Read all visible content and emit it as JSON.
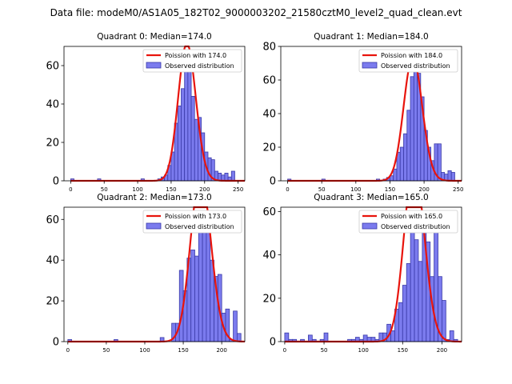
{
  "figure_title": "Data file: modeM0/AS1A05_182T02_9000003202_21580cztM0_level2_quad_clean.evt",
  "colors": {
    "bar_fill": "#7b7bee",
    "bar_edge": "#3a3aa8",
    "curve": "#e8140c",
    "axes": "#000000"
  },
  "chart_data": [
    {
      "type": "bar",
      "title": "Quadrant 0: Median=174.0",
      "median": 174.0,
      "legend_curve": "Poission with 174.0",
      "legend_bars": "Observed distribution",
      "legend_position": "top-right",
      "xlim": [
        -10,
        260
      ],
      "ylim": [
        0,
        70
      ],
      "xticks": [
        0,
        50,
        100,
        150,
        200,
        250
      ],
      "yticks": [
        0,
        20,
        40,
        60
      ],
      "bin_width": 5,
      "bins": [
        [
          0,
          1
        ],
        [
          40,
          1
        ],
        [
          105,
          1
        ],
        [
          130,
          1
        ],
        [
          135,
          2
        ],
        [
          140,
          3
        ],
        [
          145,
          8
        ],
        [
          150,
          15
        ],
        [
          155,
          30
        ],
        [
          160,
          39
        ],
        [
          165,
          48
        ],
        [
          170,
          66
        ],
        [
          175,
          63
        ],
        [
          180,
          44
        ],
        [
          185,
          32
        ],
        [
          190,
          33
        ],
        [
          195,
          25
        ],
        [
          200,
          15
        ],
        [
          205,
          12
        ],
        [
          210,
          11
        ],
        [
          215,
          5
        ],
        [
          220,
          4
        ],
        [
          225,
          3
        ],
        [
          230,
          4
        ],
        [
          235,
          2
        ],
        [
          240,
          5
        ]
      ]
    },
    {
      "type": "bar",
      "title": "Quadrant 1: Median=184.0",
      "median": 184.0,
      "legend_curve": "Poission with 184.0",
      "legend_bars": "Observed distribution",
      "legend_position": "top-right",
      "xlim": [
        -10,
        255
      ],
      "ylim": [
        0,
        80
      ],
      "xticks": [
        0,
        50,
        100,
        150,
        200,
        250
      ],
      "yticks": [
        0,
        20,
        40,
        60,
        80
      ],
      "bin_width": 5,
      "bins": [
        [
          0,
          1
        ],
        [
          50,
          1
        ],
        [
          130,
          1
        ],
        [
          140,
          1
        ],
        [
          145,
          2
        ],
        [
          150,
          3
        ],
        [
          155,
          7
        ],
        [
          160,
          17
        ],
        [
          165,
          20
        ],
        [
          170,
          28
        ],
        [
          175,
          42
        ],
        [
          180,
          62
        ],
        [
          185,
          75
        ],
        [
          190,
          64
        ],
        [
          195,
          50
        ],
        [
          200,
          30
        ],
        [
          205,
          20
        ],
        [
          210,
          12
        ],
        [
          215,
          22
        ],
        [
          220,
          22
        ],
        [
          225,
          5
        ],
        [
          230,
          4
        ],
        [
          235,
          6
        ],
        [
          240,
          5
        ]
      ]
    },
    {
      "type": "bar",
      "title": "Quadrant 2: Median=173.0",
      "median": 173.0,
      "legend_curve": "Poission with 173.0",
      "legend_bars": "Observed distribution",
      "legend_position": "top-right",
      "xlim": [
        -5,
        230
      ],
      "ylim": [
        0,
        66
      ],
      "xticks": [
        0,
        50,
        100,
        150,
        200
      ],
      "yticks": [
        0,
        20,
        40,
        60
      ],
      "bin_width": 5,
      "bins": [
        [
          0,
          1
        ],
        [
          60,
          1
        ],
        [
          120,
          2
        ],
        [
          135,
          9
        ],
        [
          140,
          9
        ],
        [
          145,
          35
        ],
        [
          150,
          25
        ],
        [
          155,
          41
        ],
        [
          160,
          45
        ],
        [
          165,
          42
        ],
        [
          170,
          60
        ],
        [
          175,
          62
        ],
        [
          180,
          55
        ],
        [
          185,
          40
        ],
        [
          190,
          32
        ],
        [
          195,
          33
        ],
        [
          200,
          14
        ],
        [
          205,
          16
        ],
        [
          210,
          1
        ],
        [
          215,
          15
        ],
        [
          220,
          4
        ]
      ]
    },
    {
      "type": "bar",
      "title": "Quadrant 3: Median=165.0",
      "median": 165.0,
      "legend_curve": "Poission with 165.0",
      "legend_bars": "Observed distribution",
      "legend_position": "top-right",
      "xlim": [
        -5,
        225
      ],
      "ylim": [
        0,
        62
      ],
      "xticks": [
        0,
        50,
        100,
        150,
        200
      ],
      "yticks": [
        0,
        20,
        40,
        60
      ],
      "bin_width": 5,
      "bins": [
        [
          0,
          4
        ],
        [
          5,
          1
        ],
        [
          10,
          1
        ],
        [
          20,
          1
        ],
        [
          30,
          3
        ],
        [
          35,
          1
        ],
        [
          45,
          1
        ],
        [
          50,
          4
        ],
        [
          80,
          1
        ],
        [
          85,
          1
        ],
        [
          90,
          2
        ],
        [
          95,
          1
        ],
        [
          100,
          3
        ],
        [
          105,
          2
        ],
        [
          110,
          2
        ],
        [
          115,
          1
        ],
        [
          120,
          4
        ],
        [
          125,
          4
        ],
        [
          130,
          8
        ],
        [
          135,
          5
        ],
        [
          140,
          15
        ],
        [
          145,
          18
        ],
        [
          150,
          26
        ],
        [
          155,
          36
        ],
        [
          160,
          58
        ],
        [
          165,
          47
        ],
        [
          170,
          37
        ],
        [
          175,
          58
        ],
        [
          180,
          46
        ],
        [
          185,
          30
        ],
        [
          190,
          51
        ],
        [
          195,
          30
        ],
        [
          200,
          19
        ],
        [
          205,
          1
        ],
        [
          210,
          5
        ],
        [
          215,
          1
        ]
      ]
    }
  ]
}
